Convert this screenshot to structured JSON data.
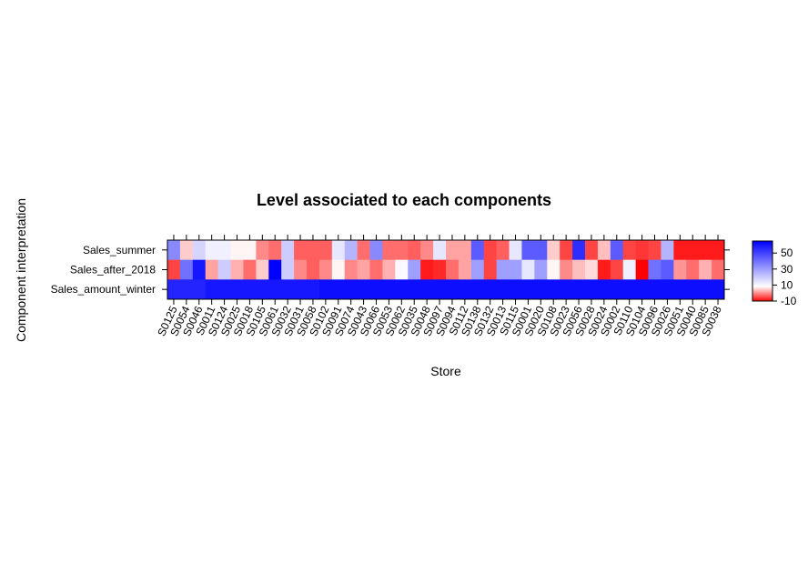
{
  "chart_data": {
    "type": "heatmap",
    "title": "Level associated to each components",
    "xlabel": "Store",
    "ylabel": "Component interpretation",
    "rows": [
      "Sales_summer",
      "Sales_after_2018",
      "Sales_amount_winter"
    ],
    "columns": [
      "S0125",
      "S0054",
      "S0046",
      "S0011",
      "S0124",
      "S0025",
      "S0018",
      "S0105",
      "S0061",
      "S0032",
      "S0031",
      "S0058",
      "S0102",
      "S0091",
      "S0074",
      "S0043",
      "S0066",
      "S0053",
      "S0062",
      "S0035",
      "S0048",
      "S0097",
      "S0094",
      "S0112",
      "S0138",
      "S0132",
      "S0013",
      "S0115",
      "S0001",
      "S0020",
      "S0108",
      "S0023",
      "S0056",
      "S0028",
      "S0024",
      "S0002",
      "S0110",
      "S0104",
      "S0096",
      "S0026",
      "S0051",
      "S0040",
      "S0085",
      "S0038"
    ],
    "values": [
      [
        35,
        5,
        18,
        12,
        12,
        8,
        8,
        0,
        -2,
        20,
        -3,
        -3,
        -3,
        14,
        25,
        -2,
        35,
        -2,
        -2,
        -3,
        0,
        14,
        2,
        2,
        45,
        -5,
        -3,
        14,
        45,
        45,
        5,
        -5,
        55,
        -5,
        4,
        45,
        -5,
        -6,
        -5,
        25,
        -8,
        -8,
        -8,
        -8
      ],
      [
        -5,
        40,
        60,
        2,
        20,
        3,
        -2,
        5,
        65,
        20,
        0,
        -3,
        0,
        8,
        0,
        2,
        -2,
        3,
        10,
        30,
        -8,
        -7,
        -2,
        2,
        30,
        -5,
        30,
        30,
        14,
        30,
        8,
        0,
        4,
        6,
        -8,
        -5,
        12,
        -10,
        40,
        45,
        1,
        -2,
        3,
        -2
      ],
      [
        57,
        57,
        57,
        60,
        60,
        60,
        60,
        60,
        60,
        60,
        60,
        60,
        62,
        62,
        62,
        62,
        62,
        62,
        62,
        62,
        62,
        62,
        62,
        62,
        62,
        62,
        62,
        62,
        62,
        62,
        62,
        62,
        62,
        62,
        62,
        62,
        62,
        62,
        62,
        62,
        62,
        62,
        62,
        62
      ]
    ],
    "zlim": [
      -10,
      65
    ],
    "colorbar_ticks": [
      -10,
      10,
      30,
      50
    ],
    "colors": {
      "low": "#ff0000",
      "mid": "#ffffff",
      "high": "#0000ff"
    }
  }
}
